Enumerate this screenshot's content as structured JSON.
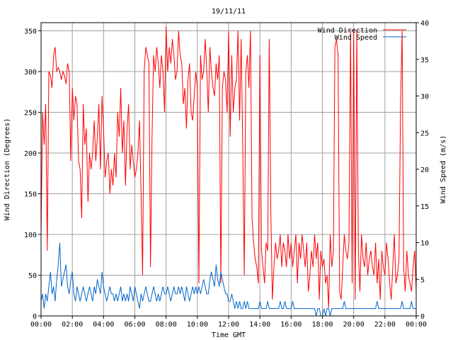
{
  "chart_data": {
    "type": "line",
    "title": "19/11/11",
    "xlabel": "Time GMT",
    "ylabel": "Wind Direction (Degrees)",
    "y2label": "Wind Speed (m/s)",
    "xlim": [
      0,
      24
    ],
    "ylim": [
      0,
      360
    ],
    "y2lim": [
      0,
      40
    ],
    "x_tick_labels": [
      "00:00",
      "02:00",
      "04:00",
      "06:00",
      "08:00",
      "10:00",
      "12:00",
      "14:00",
      "16:00",
      "18:00",
      "20:00",
      "22:00",
      "00:00"
    ],
    "y_tick_labels": [
      "0",
      "50",
      "100",
      "150",
      "200",
      "250",
      "300",
      "350"
    ],
    "y2_tick_labels": [
      "0",
      "5",
      "10",
      "15",
      "20",
      "25",
      "30",
      "35",
      "40"
    ],
    "grid": true,
    "legend_position": "top-right",
    "series": [
      {
        "name": "Wind Direction",
        "color": "#ff0000",
        "axis": "left",
        "x": [
          0.0,
          0.1,
          0.2,
          0.3,
          0.4,
          0.5,
          0.6,
          0.7,
          0.8,
          0.9,
          1.0,
          1.1,
          1.2,
          1.3,
          1.4,
          1.5,
          1.6,
          1.7,
          1.8,
          1.9,
          2.0,
          2.1,
          2.2,
          2.3,
          2.4,
          2.5,
          2.6,
          2.7,
          2.8,
          2.9,
          3.0,
          3.1,
          3.2,
          3.3,
          3.4,
          3.5,
          3.6,
          3.7,
          3.8,
          3.9,
          4.0,
          4.1,
          4.2,
          4.3,
          4.4,
          4.5,
          4.6,
          4.7,
          4.8,
          4.9,
          5.0,
          5.1,
          5.2,
          5.3,
          5.4,
          5.5,
          5.6,
          5.7,
          5.8,
          5.9,
          6.0,
          6.1,
          6.2,
          6.3,
          6.4,
          6.5,
          6.6,
          6.7,
          6.8,
          6.9,
          7.0,
          7.1,
          7.2,
          7.3,
          7.4,
          7.5,
          7.6,
          7.7,
          7.8,
          7.9,
          8.0,
          8.1,
          8.2,
          8.3,
          8.4,
          8.5,
          8.6,
          8.7,
          8.8,
          8.9,
          9.0,
          9.1,
          9.2,
          9.3,
          9.4,
          9.5,
          9.6,
          9.7,
          9.8,
          9.9,
          10.0,
          10.1,
          10.2,
          10.3,
          10.4,
          10.5,
          10.6,
          10.7,
          10.8,
          10.9,
          11.0,
          11.1,
          11.2,
          11.3,
          11.4,
          11.5,
          11.6,
          11.7,
          11.8,
          11.9,
          12.0,
          12.1,
          12.2,
          12.3,
          12.4,
          12.5,
          12.6,
          12.7,
          12.8,
          12.9,
          13.0,
          13.1,
          13.2,
          13.3,
          13.4,
          13.5,
          13.6,
          13.7,
          13.8,
          13.9,
          14.0,
          14.1,
          14.2,
          14.3,
          14.4,
          14.5,
          14.6,
          14.7,
          14.8,
          14.9,
          15.0,
          15.1,
          15.2,
          15.3,
          15.4,
          15.5,
          15.6,
          15.7,
          15.8,
          15.9,
          16.0,
          16.1,
          16.2,
          16.3,
          16.4,
          16.5,
          16.6,
          16.7,
          16.8,
          16.9,
          17.0,
          17.1,
          17.2,
          17.3,
          17.4,
          17.5,
          17.6,
          17.7,
          17.8,
          17.9,
          18.0,
          18.1,
          18.2,
          18.3,
          18.4,
          18.5,
          18.6,
          18.7,
          18.8,
          18.9,
          19.0,
          19.1,
          19.2,
          19.3,
          19.4,
          19.5,
          19.6,
          19.7,
          19.8,
          19.9,
          20.0,
          20.1,
          20.2,
          20.3,
          20.4,
          20.5,
          20.6,
          20.7,
          20.8,
          20.9,
          21.0,
          21.1,
          21.2,
          21.3,
          21.4,
          21.5,
          21.6,
          21.7,
          21.8,
          21.9,
          22.0,
          22.1,
          22.2,
          22.3,
          22.4,
          22.5,
          22.6,
          22.7,
          22.8,
          22.9,
          23.0,
          23.1,
          23.2,
          23.3,
          23.4,
          23.5,
          23.6,
          23.7,
          23.8,
          23.9,
          24.0
        ],
        "values": [
          100,
          250,
          210,
          260,
          80,
          300,
          295,
          280,
          320,
          330,
          300,
          305,
          300,
          290,
          300,
          295,
          285,
          310,
          300,
          190,
          280,
          240,
          270,
          260,
          190,
          180,
          120,
          260,
          210,
          230,
          140,
          200,
          180,
          200,
          240,
          190,
          220,
          260,
          180,
          270,
          230,
          170,
          190,
          200,
          150,
          180,
          160,
          200,
          170,
          250,
          220,
          280,
          200,
          240,
          160,
          230,
          260,
          180,
          210,
          190,
          170,
          180,
          200,
          240,
          150,
          50,
          300,
          330,
          320,
          310,
          60,
          220,
          320,
          300,
          330,
          310,
          280,
          320,
          300,
          250,
          355,
          300,
          330,
          310,
          340,
          320,
          290,
          300,
          350,
          320,
          310,
          260,
          280,
          230,
          290,
          310,
          250,
          240,
          270,
          300,
          280,
          40,
          320,
          290,
          300,
          340,
          300,
          250,
          330,
          300,
          280,
          270,
          310,
          290,
          320,
          40,
          280,
          300,
          290,
          250,
          350,
          220,
          320,
          250,
          280,
          290,
          350,
          240,
          340,
          210,
          50,
          300,
          320,
          280,
          350,
          120,
          90,
          70,
          60,
          40,
          320,
          80,
          60,
          40,
          90,
          80,
          340,
          130,
          20,
          60,
          90,
          70,
          80,
          100,
          60,
          90,
          80,
          60,
          100,
          70,
          90,
          60,
          80,
          100,
          40,
          90,
          70,
          100,
          80,
          60,
          90,
          30,
          50,
          80,
          60,
          100,
          70,
          90,
          20,
          80,
          60,
          70,
          40,
          50,
          10,
          100,
          60,
          80,
          330,
          340,
          320,
          30,
          20,
          60,
          100,
          80,
          70,
          90,
          350,
          40,
          350,
          20,
          350,
          80,
          30,
          100,
          70,
          60,
          90,
          50,
          70,
          80,
          60,
          50,
          90,
          40,
          70,
          20,
          80,
          60,
          50,
          90,
          70,
          40,
          20,
          60,
          100,
          40,
          50,
          70,
          260,
          350,
          60,
          30,
          80,
          50,
          40,
          30,
          60,
          80,
          30
        ]
      },
      {
        "name": "Wind Speed",
        "color": "#0066cc",
        "axis": "right",
        "x": [
          0.0,
          0.1,
          0.2,
          0.3,
          0.4,
          0.5,
          0.6,
          0.7,
          0.8,
          0.9,
          1.0,
          1.1,
          1.2,
          1.3,
          1.4,
          1.5,
          1.6,
          1.7,
          1.8,
          1.9,
          2.0,
          2.1,
          2.2,
          2.3,
          2.4,
          2.5,
          2.6,
          2.7,
          2.8,
          2.9,
          3.0,
          3.1,
          3.2,
          3.3,
          3.4,
          3.5,
          3.6,
          3.7,
          3.8,
          3.9,
          4.0,
          4.1,
          4.2,
          4.3,
          4.4,
          4.5,
          4.6,
          4.7,
          4.8,
          4.9,
          5.0,
          5.1,
          5.2,
          5.3,
          5.4,
          5.5,
          5.6,
          5.7,
          5.8,
          5.9,
          6.0,
          6.1,
          6.2,
          6.3,
          6.4,
          6.5,
          6.6,
          6.7,
          6.8,
          6.9,
          7.0,
          7.1,
          7.2,
          7.3,
          7.4,
          7.5,
          7.6,
          7.7,
          7.8,
          7.9,
          8.0,
          8.1,
          8.2,
          8.3,
          8.4,
          8.5,
          8.6,
          8.7,
          8.8,
          8.9,
          9.0,
          9.1,
          9.2,
          9.3,
          9.4,
          9.5,
          9.6,
          9.7,
          9.8,
          9.9,
          10.0,
          10.1,
          10.2,
          10.3,
          10.4,
          10.5,
          10.6,
          10.7,
          10.8,
          10.9,
          11.0,
          11.1,
          11.2,
          11.3,
          11.4,
          11.5,
          11.6,
          11.7,
          11.8,
          11.9,
          12.0,
          12.1,
          12.2,
          12.3,
          12.4,
          12.5,
          12.6,
          12.7,
          12.8,
          12.9,
          13.0,
          13.1,
          13.2,
          13.3,
          13.4,
          13.5,
          13.6,
          13.7,
          13.8,
          13.9,
          14.0,
          14.1,
          14.2,
          14.3,
          14.4,
          14.5,
          14.6,
          14.7,
          14.8,
          14.9,
          15.0,
          15.1,
          15.2,
          15.3,
          15.4,
          15.5,
          15.6,
          15.7,
          15.8,
          15.9,
          16.0,
          16.1,
          16.2,
          16.3,
          16.4,
          16.5,
          16.6,
          16.7,
          16.8,
          16.9,
          17.0,
          17.1,
          17.2,
          17.3,
          17.4,
          17.5,
          17.6,
          17.7,
          17.8,
          17.9,
          18.0,
          18.1,
          18.2,
          18.3,
          18.4,
          18.5,
          18.6,
          18.7,
          18.8,
          18.9,
          19.0,
          19.1,
          19.2,
          19.3,
          19.4,
          19.5,
          19.6,
          19.7,
          19.8,
          19.9,
          20.0,
          20.1,
          20.2,
          20.3,
          20.4,
          20.5,
          20.6,
          20.7,
          20.8,
          20.9,
          21.0,
          21.1,
          21.2,
          21.3,
          21.4,
          21.5,
          21.6,
          21.7,
          21.8,
          21.9,
          22.0,
          22.1,
          22.2,
          22.3,
          22.4,
          22.5,
          22.6,
          22.7,
          22.8,
          22.9,
          23.0,
          23.1,
          23.2,
          23.3,
          23.4,
          23.5,
          23.6,
          23.7,
          23.8,
          23.9,
          24.0
        ],
        "values": [
          2,
          3,
          1,
          3,
          2,
          4,
          6,
          3,
          4,
          2,
          5,
          7,
          10,
          4,
          5,
          6,
          7,
          4,
          3,
          5,
          6,
          3,
          2,
          4,
          3,
          2,
          3,
          4,
          3,
          2,
          3,
          4,
          3,
          2,
          4,
          3,
          5,
          4,
          3,
          6,
          4,
          3,
          2,
          3,
          4,
          3,
          3,
          2,
          3,
          2,
          3,
          4,
          2,
          3,
          2,
          3,
          2,
          4,
          3,
          2,
          4,
          3,
          2,
          1,
          3,
          2,
          3,
          4,
          3,
          2,
          2,
          3,
          4,
          3,
          2,
          3,
          2,
          3,
          4,
          3,
          3,
          4,
          3,
          2,
          3,
          4,
          3,
          3,
          4,
          3,
          4,
          3,
          2,
          4,
          3,
          2,
          3,
          4,
          3,
          4,
          3,
          4,
          3,
          4,
          5,
          4,
          3,
          3,
          5,
          6,
          5,
          4,
          7,
          5,
          4,
          6,
          5,
          4,
          3,
          3,
          2,
          2,
          3,
          2,
          1,
          2,
          1,
          2,
          1,
          1,
          2,
          1,
          2,
          1,
          1,
          1,
          1,
          1,
          1,
          1,
          2,
          1,
          1,
          1,
          1,
          2,
          1,
          1,
          1,
          1,
          1,
          1,
          1,
          2,
          1,
          1,
          2,
          1,
          1,
          1,
          1,
          2,
          1,
          1,
          1,
          1,
          1,
          1,
          1,
          1,
          1,
          1,
          1,
          1,
          1,
          1,
          0,
          1,
          1,
          0,
          0,
          1,
          0,
          1,
          1,
          0,
          1,
          1,
          1,
          1,
          1,
          1,
          1,
          1,
          2,
          1,
          1,
          1,
          1,
          1,
          1,
          1,
          1,
          1,
          1,
          1,
          1,
          1,
          1,
          1,
          1,
          1,
          1,
          1,
          1,
          2,
          1,
          1,
          1,
          1,
          1,
          1,
          1,
          1,
          1,
          1,
          1,
          1,
          1,
          1,
          1,
          2,
          1,
          1,
          1,
          1,
          1,
          2,
          1,
          1,
          1
        ]
      }
    ]
  }
}
